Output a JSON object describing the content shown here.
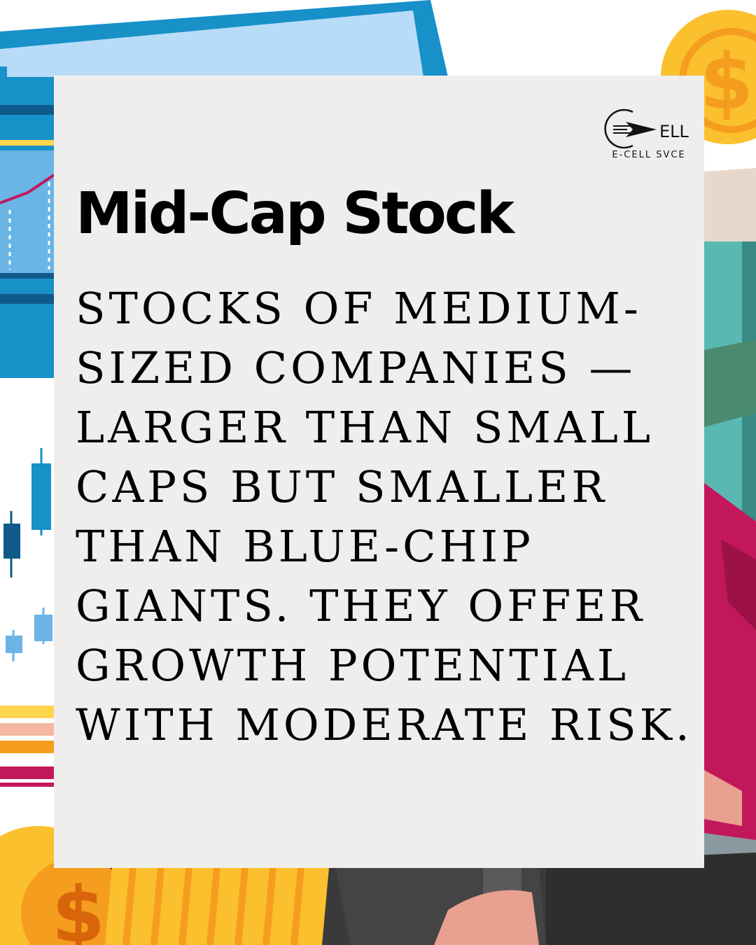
{
  "logo": {
    "mark_text": "ELL",
    "subtitle": "E-CELL SVCE"
  },
  "title": "Mid-Cap Stock",
  "body": "STOCKS OF MEDIUM-\nSIZED COMPANIES —\nLARGER THAN SMALL\nCAPS BUT SMALLER\nTHAN BLUE-CHIP\nGIANTS. THEY OFFER\nGROWTH POTENTIAL\nWITH MODERATE RISK.",
  "icons": {
    "coin_symbol": "$"
  },
  "colors": {
    "card": "#efeeec",
    "coin_gold": "#fbc02d",
    "coin_orange": "#f59d1f",
    "screen_blue": "#1890c8",
    "screen_light": "#b8dcf8",
    "teal": "#5ab8b2",
    "crimson": "#c2185b",
    "dark": "#3a3a3a"
  }
}
